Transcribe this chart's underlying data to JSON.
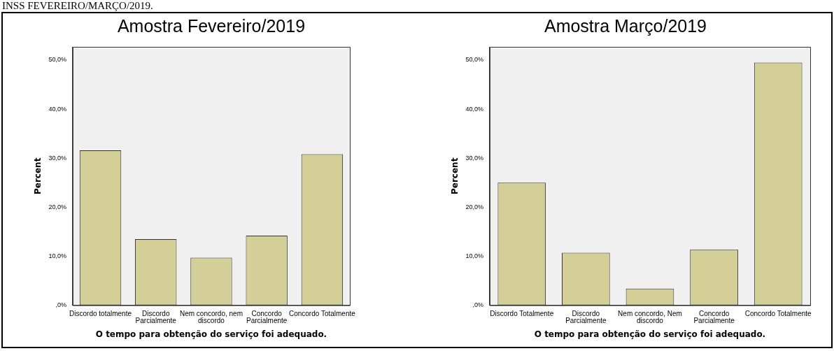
{
  "chart_data": [
    {
      "type": "bar",
      "title": "Amostra Fevereiro/2019",
      "xlabel": "O tempo para obtenção do serviço foi adequado.",
      "ylabel": "Percent",
      "annotations": [
        "INSS FEVEREIRO/MARÇO/2019."
      ],
      "categories": [
        "Discordo totalmente",
        "Discordo Parcialmente",
        "Nem concordo, nem discordo",
        "Concordo Parcialmente",
        "Concordo Totalmente"
      ],
      "values": [
        31.6,
        13.5,
        9.7,
        14.2,
        30.8
      ],
      "color": "#d3cf97",
      "ylim": [
        0,
        52.7
      ],
      "yticks": [
        {
          "value": 0,
          "label": ",0%"
        },
        {
          "value": 10,
          "label": "10,0%"
        },
        {
          "value": 20,
          "label": "20,0%"
        },
        {
          "value": 30,
          "label": "30,0%"
        },
        {
          "value": 40,
          "label": "40,0%"
        },
        {
          "value": 50,
          "label": "50,0%"
        }
      ],
      "grid": false,
      "legend": false
    },
    {
      "type": "bar",
      "title": "Amostra Março/2019",
      "xlabel": "O tempo para obtenção do serviço foi adequado.",
      "ylabel": "Percent",
      "categories": [
        "Discordo Totalmente",
        "Discordo Parcialmente",
        "Nem concordo, Nem discordo",
        "Concordo Parcialmente",
        "Concordo Totalmente"
      ],
      "values": [
        25.0,
        10.7,
        3.4,
        11.4,
        49.5
      ],
      "color": "#d3cf97",
      "ylim": [
        0,
        52.7
      ],
      "yticks": [
        {
          "value": 0,
          "label": ",0%"
        },
        {
          "value": 10,
          "label": "10,0%"
        },
        {
          "value": 20,
          "label": "20,0%"
        },
        {
          "value": 30,
          "label": "30,0%"
        },
        {
          "value": 40,
          "label": "40,0%"
        },
        {
          "value": 50,
          "label": "50,0%"
        }
      ],
      "grid": false,
      "legend": false
    }
  ]
}
